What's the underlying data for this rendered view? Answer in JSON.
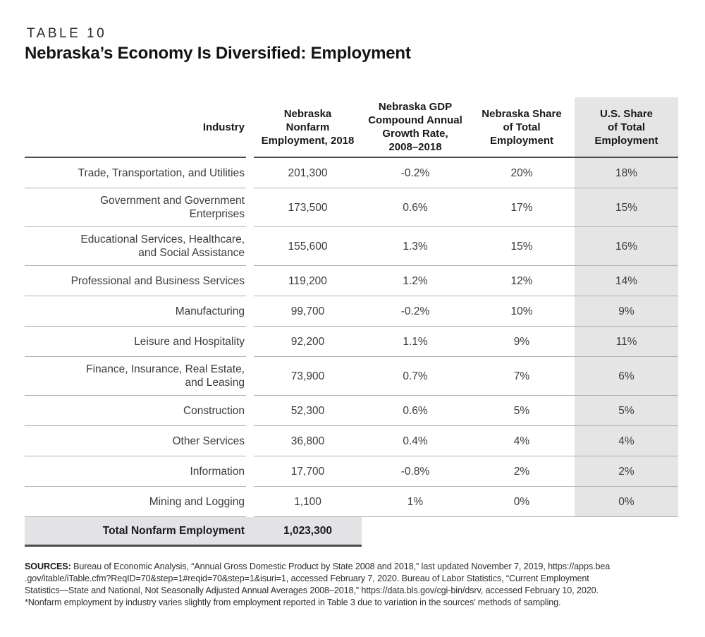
{
  "page": {
    "eyebrow": "TABLE 10",
    "title": "Nebraska’s Economy Is Diversified: Employment"
  },
  "table": {
    "headers": {
      "industry": "Industry",
      "employment": "Nebraska\nNonfarm\nEmployment, 2018",
      "growth": "Nebraska GDP\nCompound Annual\nGrowth Rate,\n2008–2018",
      "ne_share": "Nebraska Share\nof Total\nEmployment",
      "us_share": "U.S. Share\nof Total\nEmployment"
    },
    "rows": [
      {
        "industry": "Trade, Transportation, and Utilities",
        "employment": "201,300",
        "growth": "-0.2%",
        "ne_share": "20%",
        "us_share": "18%"
      },
      {
        "industry": "Government and Government\nEnterprises",
        "employment": "173,500",
        "growth": "0.6%",
        "ne_share": "17%",
        "us_share": "15%"
      },
      {
        "industry": "Educational Services, Healthcare,\nand Social Assistance",
        "employment": "155,600",
        "growth": "1.3%",
        "ne_share": "15%",
        "us_share": "16%"
      },
      {
        "industry": "Professional and Business Services",
        "employment": "119,200",
        "growth": "1.2%",
        "ne_share": "12%",
        "us_share": "14%"
      },
      {
        "industry": "Manufacturing",
        "employment": "99,700",
        "growth": "-0.2%",
        "ne_share": "10%",
        "us_share": "9%"
      },
      {
        "industry": "Leisure and Hospitality",
        "employment": "92,200",
        "growth": "1.1%",
        "ne_share": "9%",
        "us_share": "11%"
      },
      {
        "industry": "Finance, Insurance, Real Estate,\nand Leasing",
        "employment": "73,900",
        "growth": "0.7%",
        "ne_share": "7%",
        "us_share": "6%"
      },
      {
        "industry": "Construction",
        "employment": "52,300",
        "growth": "0.6%",
        "ne_share": "5%",
        "us_share": "5%"
      },
      {
        "industry": "Other Services",
        "employment": "36,800",
        "growth": "0.4%",
        "ne_share": "4%",
        "us_share": "4%"
      },
      {
        "industry": "Information",
        "employment": "17,700",
        "growth": "-0.8%",
        "ne_share": "2%",
        "us_share": "2%"
      },
      {
        "industry": "Mining and Logging",
        "employment": "1,100",
        "growth": "1%",
        "ne_share": "0%",
        "us_share": "0%"
      }
    ],
    "total": {
      "label": "Total Nonfarm Employment",
      "value": "1,023,300"
    }
  },
  "footnotes": {
    "sources_label": "SOURCES:",
    "line1": " Bureau of Economic Analysis, “Annual Gross Domestic Product by State 2008 and 2018,” last updated November 7, 2019, https://apps.bea",
    "line2": ".gov/itable/iTable.cfm?ReqID=70&step=1#reqid=70&step=1&isuri=1, accessed February 7, 2020. Bureau of Labor Statistics, “Current Employment",
    "line3": "Statistics—State and National, Not Seasonally Adjusted Annual Averages 2008–2018,” https://data.bls.gov/cgi-bin/dsrv, accessed February 10, 2020.",
    "line4": "*Nonfarm employment by industry varies slightly from employment reported in Table 3 due to variation in the sources’ methods of sampling."
  },
  "colors": {
    "shade": "#e5e5e6",
    "rule_dark": "#4d4d52",
    "rule_light": "#b0b0b3"
  }
}
